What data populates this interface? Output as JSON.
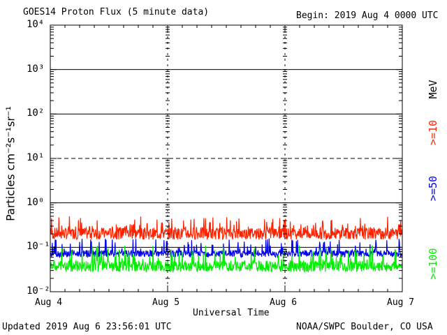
{
  "header": {
    "title": "GOES14 Proton Flux (5 minute data)",
    "begin": "Begin: 2019 Aug 4 0000 UTC"
  },
  "footer": {
    "updated": "Updated 2019 Aug  6 23:56:01 UTC",
    "source": "NOAA/SWPC Boulder, CO USA"
  },
  "chart_data": {
    "type": "line",
    "title": "GOES14 Proton Flux (5 minute data)",
    "xlabel": "Universal Time",
    "ylabel": "Particles cm⁻²s⁻¹sr⁻¹",
    "y_scale": "log",
    "ylim": [
      0.01,
      10000
    ],
    "y_ticks": [
      "10⁻²",
      "10⁻¹",
      "10⁰",
      "10¹",
      "10²",
      "10³",
      "10⁴"
    ],
    "x_ticks": [
      "Aug 4",
      "Aug 5",
      "Aug 6",
      "Aug 7"
    ],
    "xlim": [
      "2019-08-04 00:00",
      "2019-08-07 00:00"
    ],
    "legend_title": "MeV",
    "series": [
      {
        "name": ">=10",
        "color": "#ff2200",
        "typical": 0.22,
        "range": [
          0.15,
          0.5
        ]
      },
      {
        "name": ">=50",
        "color": "#0000ee",
        "typical": 0.075,
        "range": [
          0.06,
          0.16
        ]
      },
      {
        "name": ">=100",
        "color": "#00ee00",
        "typical": 0.04,
        "range": [
          0.028,
          0.11
        ]
      }
    ],
    "threshold_line": 10,
    "grid": true
  }
}
